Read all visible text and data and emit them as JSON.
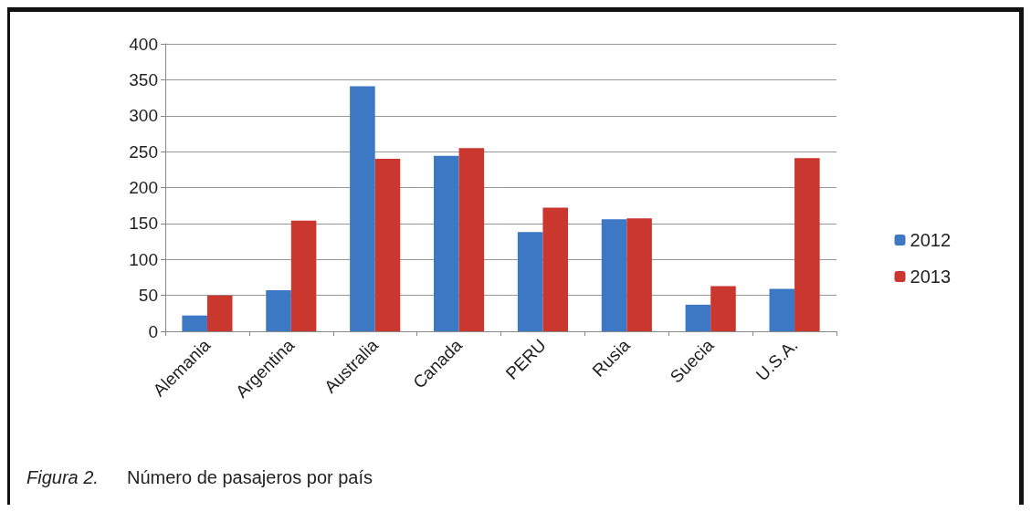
{
  "chart_data": {
    "type": "bar",
    "categories": [
      "Alemania",
      "Argentina",
      "Australia",
      "Canada",
      "PERU",
      "Rusia",
      "Suecia",
      "U.S.A."
    ],
    "series": [
      {
        "name": "2012",
        "color": "#3d78c4",
        "values": [
          22,
          57,
          341,
          244,
          138,
          156,
          37,
          59
        ]
      },
      {
        "name": "2013",
        "color": "#c9372f",
        "values": [
          50,
          154,
          240,
          255,
          172,
          157,
          63,
          241
        ]
      }
    ],
    "ylim": [
      0,
      400
    ],
    "yticks": [
      0,
      50,
      100,
      150,
      200,
      250,
      300,
      350,
      400
    ],
    "grid": "y",
    "legend": "right",
    "annotations": [
      "Figura 2.",
      "Número de pasajeros por país"
    ]
  }
}
